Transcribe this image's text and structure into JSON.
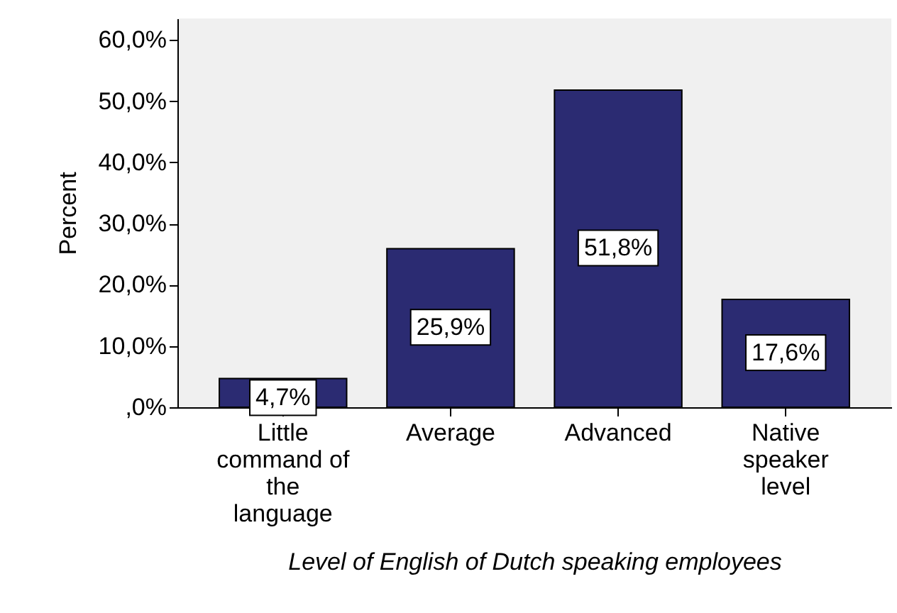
{
  "chart_data": {
    "type": "bar",
    "xlabel": "Level of English of Dutch speaking employees",
    "ylabel": "Percent",
    "categories": [
      "Little command of the language",
      "Average",
      "Advanced",
      "Native speaker level"
    ],
    "values": [
      4.7,
      25.9,
      51.8,
      17.6
    ],
    "value_labels": [
      "4,7%",
      "25,9%",
      "51,8%",
      "17,6%"
    ],
    "color": "#2b2b72",
    "ylim": [
      0,
      63.5
    ],
    "yticks": [
      {
        "value": 0,
        "label": ",0%"
      },
      {
        "value": 10,
        "label": "10,0%"
      },
      {
        "value": 20,
        "label": "20,0%"
      },
      {
        "value": 30,
        "label": "30,0%"
      },
      {
        "value": 40,
        "label": "40,0%"
      },
      {
        "value": 50,
        "label": "50,0%"
      },
      {
        "value": 60,
        "label": "60,0%"
      }
    ]
  }
}
